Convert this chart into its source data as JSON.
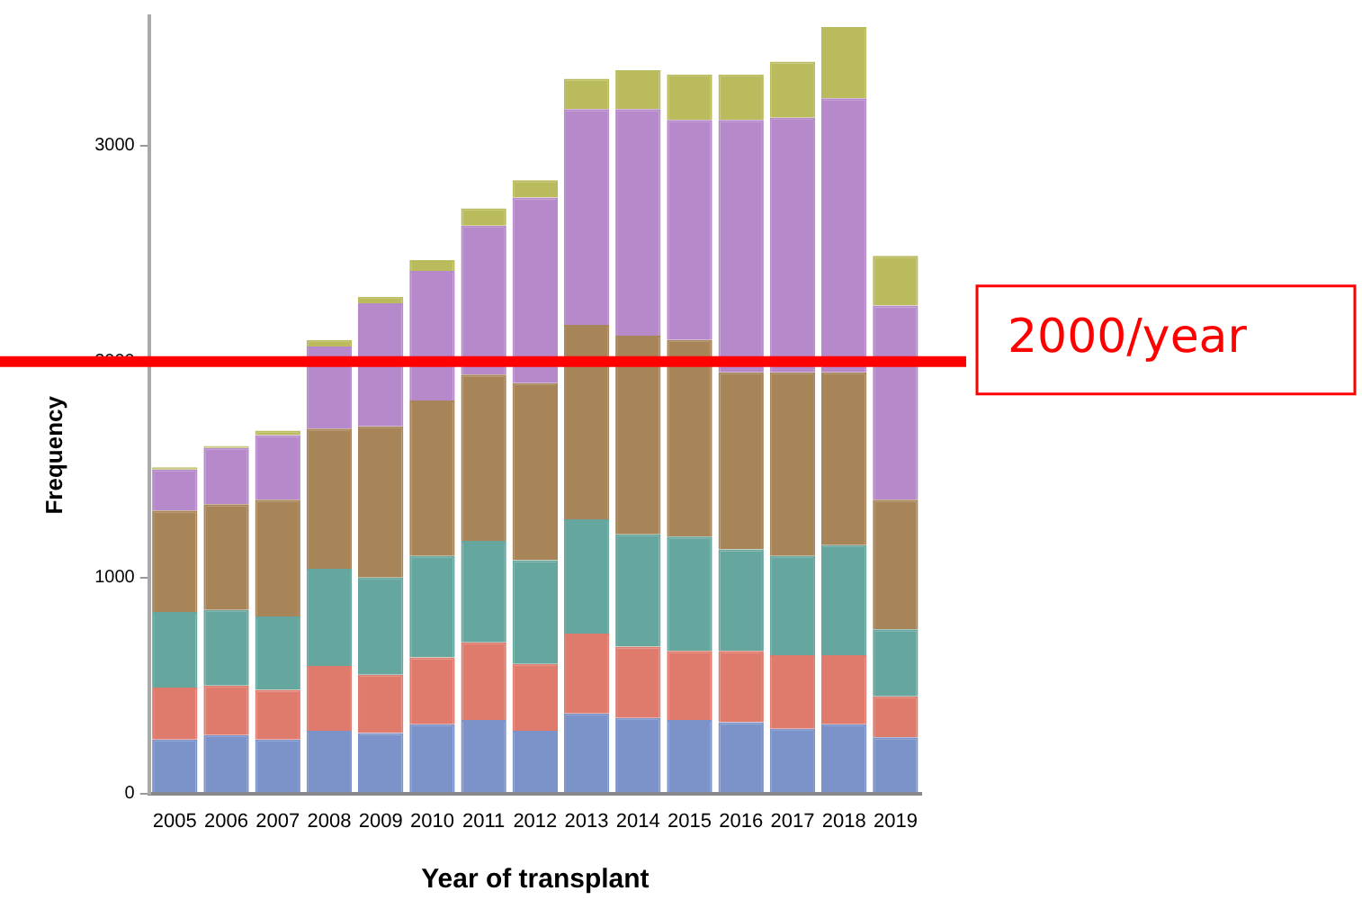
{
  "chart_data": {
    "type": "bar",
    "stacked": true,
    "xlabel": "Year of transplant",
    "ylabel": "Frequency",
    "categories": [
      "2005",
      "2006",
      "2007",
      "2008",
      "2009",
      "2010",
      "2011",
      "2012",
      "2013",
      "2014",
      "2015",
      "2016",
      "2017",
      "2018",
      "2019"
    ],
    "series": [
      {
        "color": "#7b93c9",
        "values": [
          250,
          270,
          250,
          290,
          280,
          320,
          340,
          290,
          370,
          350,
          340,
          330,
          300,
          320,
          260
        ]
      },
      {
        "color": "#df7b6c",
        "values": [
          240,
          230,
          230,
          300,
          270,
          310,
          360,
          310,
          370,
          330,
          320,
          330,
          340,
          320,
          190
        ]
      },
      {
        "color": "#65a69e",
        "values": [
          350,
          350,
          340,
          450,
          450,
          470,
          470,
          480,
          530,
          520,
          530,
          470,
          460,
          510,
          310
        ]
      },
      {
        "color": "#a88558",
        "values": [
          470,
          490,
          540,
          650,
          700,
          720,
          770,
          820,
          900,
          920,
          910,
          820,
          850,
          800,
          600
        ]
      },
      {
        "color": "#b689cb",
        "values": [
          190,
          260,
          300,
          380,
          570,
          600,
          690,
          860,
          1000,
          1050,
          1020,
          1170,
          1180,
          1270,
          900
        ]
      },
      {
        "color": "#babb5c",
        "values": [
          10,
          10,
          20,
          30,
          30,
          50,
          80,
          80,
          140,
          180,
          210,
          210,
          260,
          330,
          230
        ]
      }
    ],
    "ylim": [
      0,
      3600
    ],
    "yticks": [
      0,
      1000,
      2000,
      3000
    ],
    "grid": false,
    "legend": false,
    "ref_lines": [
      {
        "axis": "y",
        "value": 2000,
        "label": "2000/year",
        "color": "#ff0000"
      }
    ]
  }
}
